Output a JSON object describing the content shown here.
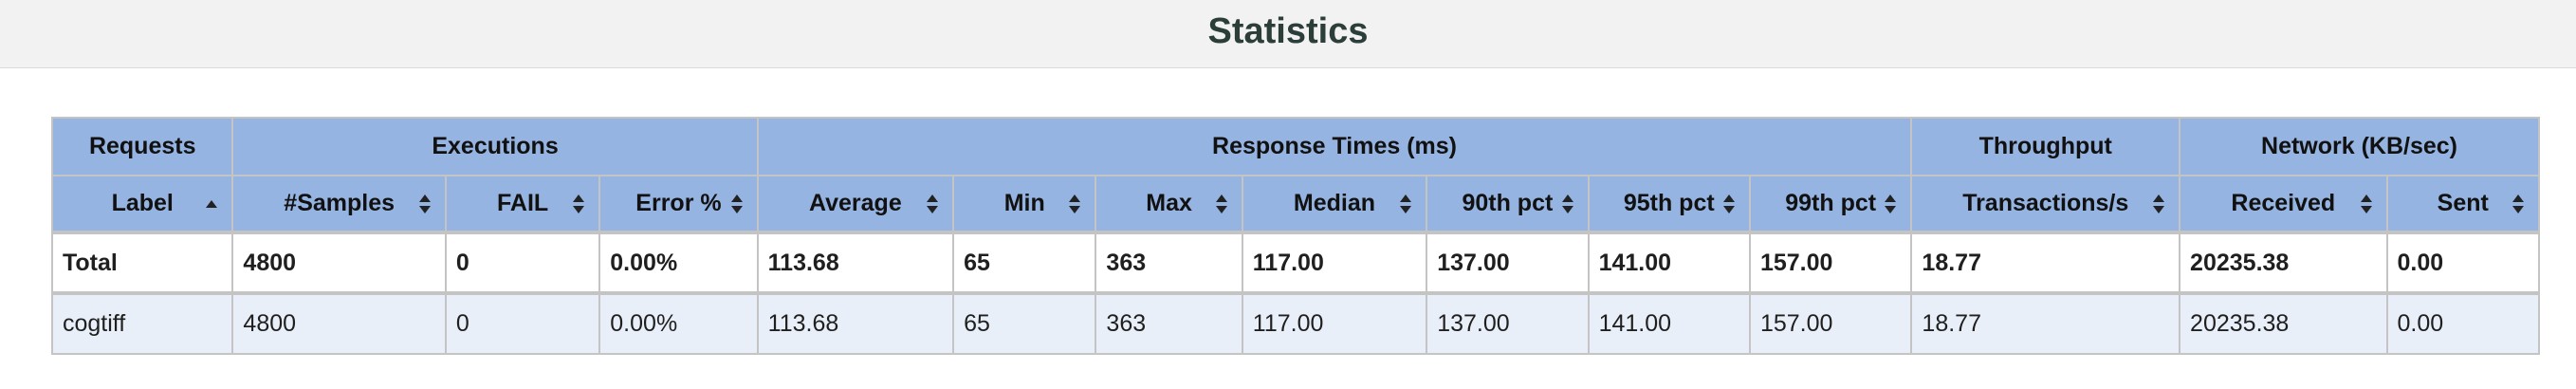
{
  "title": "Statistics",
  "groups": {
    "requests": "Requests",
    "executions": "Executions",
    "response_times": "Response Times (ms)",
    "throughput": "Throughput",
    "network": "Network (KB/sec)"
  },
  "columns": {
    "label": "Label",
    "samples": "#Samples",
    "fail": "FAIL",
    "error_pct": "Error %",
    "average": "Average",
    "min": "Min",
    "max": "Max",
    "median": "Median",
    "p90": "90th pct",
    "p95": "95th pct",
    "p99": "99th pct",
    "transactions": "Transactions/s",
    "received": "Received",
    "sent": "Sent"
  },
  "sort": {
    "active_column": "label",
    "direction": "ascending"
  },
  "rows": {
    "total": {
      "label": "Total",
      "samples": "4800",
      "fail": "0",
      "error_pct": "0.00%",
      "average": "113.68",
      "min": "65",
      "max": "363",
      "median": "117.00",
      "p90": "137.00",
      "p95": "141.00",
      "p99": "157.00",
      "transactions": "18.77",
      "received": "20235.38",
      "sent": "0.00"
    },
    "cogtiff": {
      "label": "cogtiff",
      "samples": "4800",
      "fail": "0",
      "error_pct": "0.00%",
      "average": "113.68",
      "min": "65",
      "max": "363",
      "median": "117.00",
      "p90": "137.00",
      "p95": "141.00",
      "p99": "157.00",
      "transactions": "18.77",
      "received": "20235.38",
      "sent": "0.00"
    }
  },
  "colors": {
    "header_bg": "#95b4e1",
    "alt_row_bg": "#e9eff9",
    "title_color": "#2b3e3a",
    "title_bar_bg": "#f2f2f2"
  },
  "icons": {
    "sort_asc": "triangle-up-icon",
    "sortable": "sort-both-icon"
  }
}
